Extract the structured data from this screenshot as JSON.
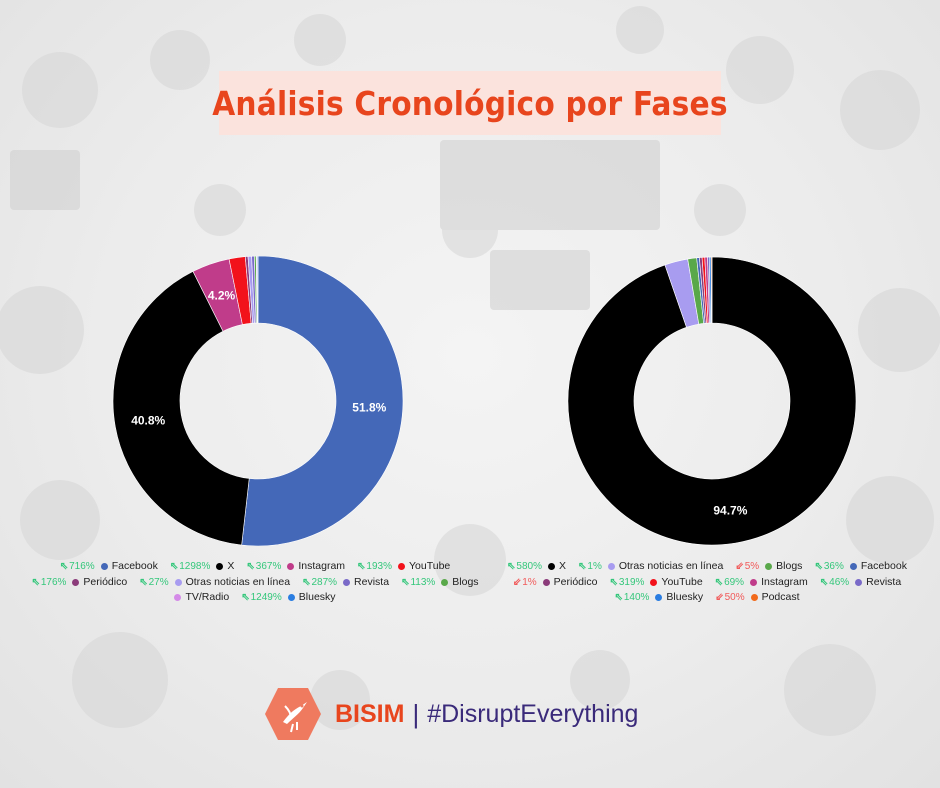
{
  "title": "Análisis Cronológico por Fases",
  "footer": {
    "brand": "BISIM",
    "separator": "|",
    "hashtag": "#DisruptEverything",
    "logo_icon": "hummingbird-hexagon-icon"
  },
  "colors": {
    "accent": "#e8451d",
    "up": "#34c77b",
    "down": "#f15a5a",
    "footer_text": "#3a2a7a"
  },
  "chart_data": [
    {
      "type": "pie",
      "donut": true,
      "title": "",
      "slices": [
        {
          "name": "Facebook",
          "value": 51.8,
          "color": "#4468b8",
          "label": "51.8%"
        },
        {
          "name": "X",
          "value": 40.8,
          "color": "#000000",
          "label": "40.8%"
        },
        {
          "name": "Instagram",
          "value": 4.2,
          "color": "#c03c8a",
          "label": "4.2%"
        },
        {
          "name": "YouTube",
          "value": 1.8,
          "color": "#f2121b",
          "label": ""
        },
        {
          "name": "Periódico",
          "value": 0.3,
          "color": "#8b3b7a",
          "label": ""
        },
        {
          "name": "Otras noticias en línea",
          "value": 0.4,
          "color": "#a89cf0",
          "label": ""
        },
        {
          "name": "Revista",
          "value": 0.3,
          "color": "#7a6ac8",
          "label": ""
        },
        {
          "name": "Blogs",
          "value": 0.2,
          "color": "#59a84a",
          "label": ""
        },
        {
          "name": "TV/Radio",
          "value": 0.1,
          "color": "#d48ae8",
          "label": ""
        },
        {
          "name": "Bluesky",
          "value": 0.1,
          "color": "#2a7de1",
          "label": ""
        }
      ],
      "legend": [
        [
          {
            "change": "716%",
            "dir": "up",
            "name": "Facebook",
            "color": "#4468b8"
          },
          {
            "change": "1298%",
            "dir": "up",
            "name": "X",
            "color": "#000000"
          },
          {
            "change": "367%",
            "dir": "up",
            "name": "Instagram",
            "color": "#c03c8a"
          },
          {
            "change": "193%",
            "dir": "up",
            "name": "YouTube",
            "color": "#f2121b"
          }
        ],
        [
          {
            "change": "176%",
            "dir": "up",
            "name": "Periódico",
            "color": "#8b3b7a"
          },
          {
            "change": "27%",
            "dir": "up",
            "name": "Otras noticias en línea",
            "color": "#a89cf0"
          },
          {
            "change": "287%",
            "dir": "up",
            "name": "Revista",
            "color": "#7a6ac8"
          },
          {
            "change": "113%",
            "dir": "up",
            "name": "Blogs",
            "color": "#59a84a"
          }
        ],
        [
          {
            "change": "",
            "dir": "none",
            "name": "TV/Radio",
            "color": "#d48ae8"
          },
          {
            "change": "1249%",
            "dir": "up",
            "name": "Bluesky",
            "color": "#2a7de1"
          }
        ]
      ]
    },
    {
      "type": "pie",
      "donut": true,
      "title": "",
      "slices": [
        {
          "name": "X",
          "value": 94.7,
          "color": "#000000",
          "label": "94.7%"
        },
        {
          "name": "Otras noticias en línea",
          "value": 2.6,
          "color": "#a89cf0",
          "label": ""
        },
        {
          "name": "Blogs",
          "value": 1.0,
          "color": "#59a84a",
          "label": ""
        },
        {
          "name": "Facebook",
          "value": 0.3,
          "color": "#4468b8",
          "label": ""
        },
        {
          "name": "Periódico",
          "value": 0.3,
          "color": "#8b3b7a",
          "label": ""
        },
        {
          "name": "YouTube",
          "value": 0.3,
          "color": "#f2121b",
          "label": ""
        },
        {
          "name": "Instagram",
          "value": 0.3,
          "color": "#c03c8a",
          "label": ""
        },
        {
          "name": "Revista",
          "value": 0.2,
          "color": "#7a6ac8",
          "label": ""
        },
        {
          "name": "Bluesky",
          "value": 0.2,
          "color": "#2a7de1",
          "label": ""
        },
        {
          "name": "Podcast",
          "value": 0.1,
          "color": "#f26a1b",
          "label": ""
        }
      ],
      "legend": [
        [
          {
            "change": "580%",
            "dir": "up",
            "name": "X",
            "color": "#000000"
          },
          {
            "change": "1%",
            "dir": "up",
            "name": "Otras noticias en línea",
            "color": "#a89cf0"
          },
          {
            "change": "5%",
            "dir": "down",
            "name": "Blogs",
            "color": "#59a84a"
          },
          {
            "change": "36%",
            "dir": "up",
            "name": "Facebook",
            "color": "#4468b8"
          }
        ],
        [
          {
            "change": "1%",
            "dir": "down",
            "name": "Periódico",
            "color": "#8b3b7a"
          },
          {
            "change": "319%",
            "dir": "up",
            "name": "YouTube",
            "color": "#f2121b"
          },
          {
            "change": "69%",
            "dir": "up",
            "name": "Instagram",
            "color": "#c03c8a"
          },
          {
            "change": "46%",
            "dir": "up",
            "name": "Revista",
            "color": "#7a6ac8"
          }
        ],
        [
          {
            "change": "140%",
            "dir": "up",
            "name": "Bluesky",
            "color": "#2a7de1"
          },
          {
            "change": "50%",
            "dir": "down",
            "name": "Podcast",
            "color": "#f26a1b"
          }
        ]
      ]
    }
  ]
}
